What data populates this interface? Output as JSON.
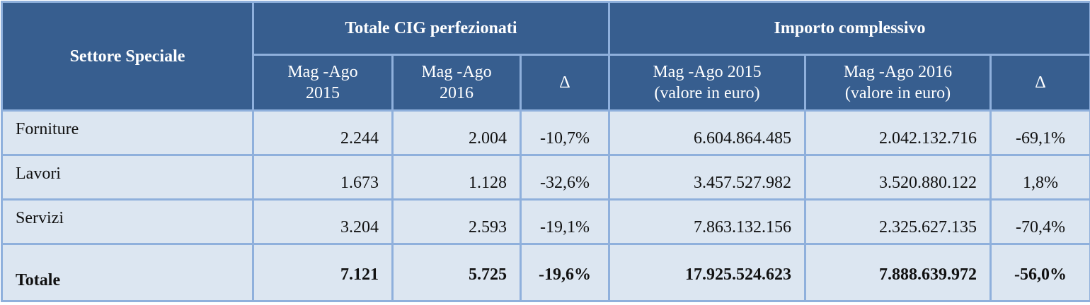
{
  "table": {
    "corner": "Settore Speciale",
    "groups": [
      "Totale CIG perfezionati",
      "Importo complessivo"
    ],
    "subheaders": [
      "Mag -Ago\n2015",
      "Mag -Ago\n2016",
      "Δ",
      "Mag -Ago 2015\n(valore in euro)",
      "Mag -Ago 2016\n(valore in euro)",
      "Δ"
    ],
    "rows": [
      [
        "Forniture",
        "2.244",
        "2.004",
        "-10,7%",
        "6.604.864.485",
        "2.042.132.716",
        "-69,1%"
      ],
      [
        "Lavori",
        "1.673",
        "1.128",
        "-32,6%",
        "3.457.527.982",
        "3.520.880.122",
        "1,8%"
      ],
      [
        "Servizi",
        "3.204",
        "2.593",
        "-19,1%",
        "7.863.132.156",
        "2.325.627.135",
        "-70,4%"
      ]
    ],
    "total": [
      "Totale",
      "7.121",
      "5.725",
      "-19,6%",
      "17.925.524.623",
      "7.888.639.972",
      "-56,0%"
    ]
  }
}
